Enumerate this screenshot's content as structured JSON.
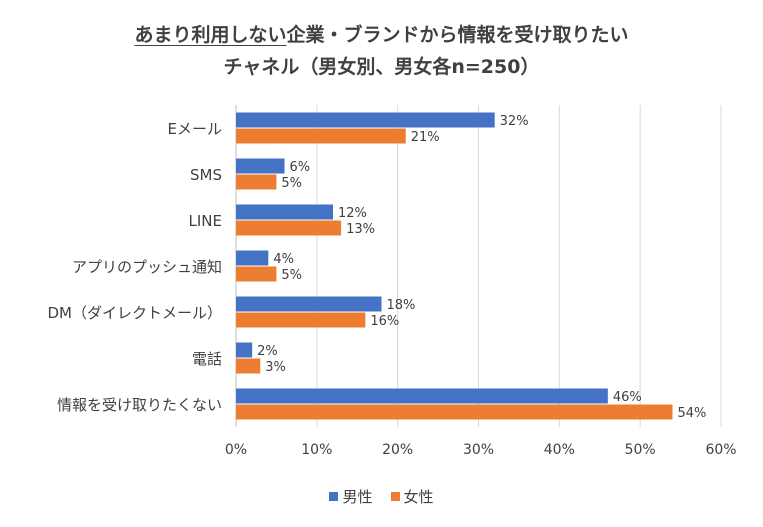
{
  "title": {
    "line1_underlined": "あまり利用しない",
    "line1_rest": "企業・ブランドから情報を受け取りたい",
    "line2": "チャネル（男女別、男女各n=250）"
  },
  "chart_data": {
    "type": "bar",
    "orientation": "horizontal",
    "categories": [
      "Eメール",
      "SMS",
      "LINE",
      "アプリのプッシュ通知",
      "DM（ダイレクトメール）",
      "電話",
      "情報を受け取りたくない"
    ],
    "series": [
      {
        "name": "男性",
        "color": "#4472C4",
        "values": [
          32,
          6,
          12,
          4,
          18,
          2,
          46
        ],
        "labels": [
          "32%",
          "6%",
          "12%",
          "4%",
          "18%",
          "2%",
          "46%"
        ]
      },
      {
        "name": "女性",
        "color": "#ED7D31",
        "values": [
          21,
          5,
          13,
          5,
          16,
          3,
          54
        ],
        "labels": [
          "21%",
          "5%",
          "13%",
          "5%",
          "16%",
          "3%",
          "54%"
        ]
      }
    ],
    "xlim": [
      0,
      60
    ],
    "x_ticks": [
      "0%",
      "10%",
      "20%",
      "30%",
      "40%",
      "50%",
      "60%"
    ],
    "x_tick_values": [
      0,
      10,
      20,
      30,
      40,
      50,
      60
    ],
    "grid": true,
    "legend_position": "bottom"
  }
}
